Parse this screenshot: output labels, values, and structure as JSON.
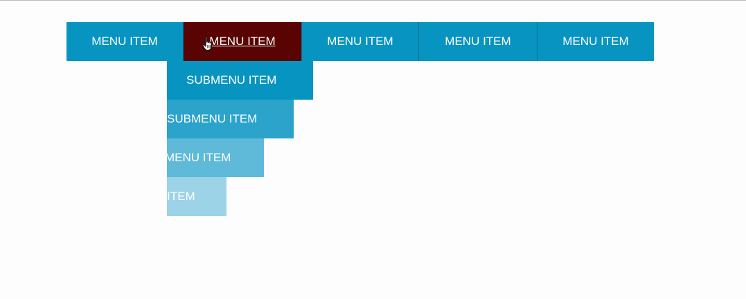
{
  "nav": {
    "items": [
      {
        "label": "MENU ITEM"
      },
      {
        "label": "MENU ITEM"
      },
      {
        "label": "MENU ITEM"
      },
      {
        "label": "MENU ITEM"
      },
      {
        "label": "MENU ITEM"
      }
    ],
    "active_index": 1
  },
  "submenu": {
    "items": [
      {
        "label": "SUBMENU ITEM"
      },
      {
        "label": "SUBMENU ITEM"
      },
      {
        "label": "MENU ITEM"
      },
      {
        "label": "ITEM"
      }
    ]
  },
  "colors": {
    "nav_bg": "#0794c1",
    "nav_active_bg": "#5a0303",
    "sub_level_1": "#0794c1",
    "sub_level_2": "#2ba3cb",
    "sub_level_3": "#5fb9d8",
    "sub_level_4": "#9cd3e7"
  },
  "icons": {
    "cursor": "hand-pointer-icon"
  }
}
